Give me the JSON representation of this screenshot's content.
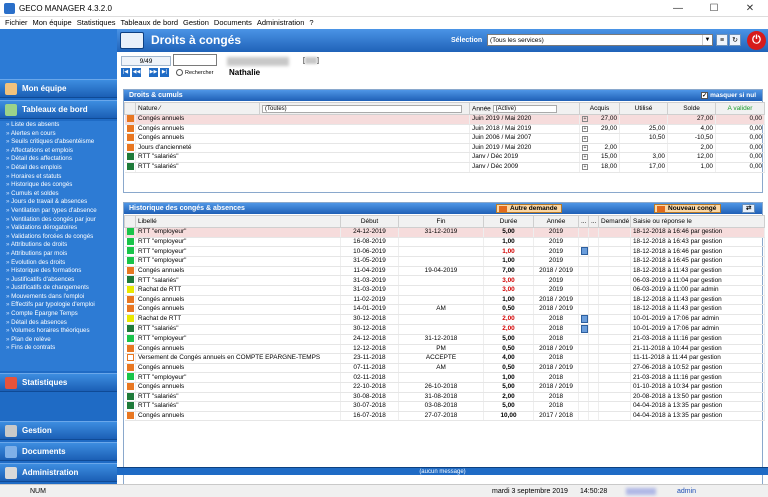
{
  "window": {
    "title": "GECO MANAGER 4.3.2.0",
    "minimize": "—",
    "maximize": "☐",
    "close": "✕"
  },
  "menu": [
    "Fichier",
    "Mon équipe",
    "Statistiques",
    "Tableaux de bord",
    "Gestion",
    "Documents",
    "Administration",
    "?"
  ],
  "sidebar": {
    "mon_equipe": "Mon équipe",
    "tableaux": "Tableaux de bord",
    "items": [
      "Liste des absents",
      "Alertes en cours",
      "Seuils critiques d'absentéisme",
      "Affectations et emplois",
      "Détail des affectations",
      "Détail des emplois",
      "Horaires et statuts",
      "Historique des congés",
      "Cumuls et soldes",
      "Jours de travail & absences",
      "Ventilation par types d'absence",
      "Ventilation des congés par jour",
      "Validations dérogatoires",
      "Validations forcées de congés",
      "Attributions de droits",
      "Attributions par mois",
      "Évolution des droits",
      "Historique des formations",
      "Justificatifs d'absences",
      "Justificatifs de changements",
      "Mouvements dans l'emploi",
      "Effectifs par typologie d'emploi",
      "Compte Épargne Temps",
      "Détail des absences",
      "Volumes horaires théoriques",
      "Plan de relève",
      "Fins de contrats"
    ],
    "statistiques": "Statistiques",
    "gestion": "Gestion",
    "documents": "Documents",
    "administration": "Administration"
  },
  "header": {
    "title": "Droits à congés",
    "selection_label": "Sélection",
    "selection_value": "(Tous les services)"
  },
  "nav": {
    "counter": "9/49",
    "search_label": "Rechercher",
    "person_name": "Nathalie",
    "bracket_left": "[",
    "bracket_right": "]",
    "first": "|◀",
    "prev": "◀◀",
    "next": "▶▶",
    "last": "▶|"
  },
  "droits": {
    "title": "Droits & cumuls",
    "masquer": "masquer si nul",
    "headers": {
      "nature": "Nature",
      "nature_filter": "(Toutes)",
      "annee": "Année",
      "annee_filter": "(Active)",
      "acquis": "Acquis",
      "utilise": "Utilisé",
      "solde": "Solde",
      "a_valider": "A valider"
    },
    "rows": [
      {
        "color": "#e87722",
        "nature": "Congés annuels",
        "annee": "Juin 2019 / Mai 2020",
        "acquis": "27,00",
        "utilise": "",
        "solde": "27,00",
        "a_valider": "0,00",
        "hl": true
      },
      {
        "color": "#e87722",
        "nature": "Congés annuels",
        "annee": "Juin 2018 / Mai 2019",
        "acquis": "29,00",
        "utilise": "25,00",
        "solde": "4,00",
        "a_valider": "0,00",
        "hl": false
      },
      {
        "color": "#e87722",
        "nature": "Congés annuels",
        "annee": "Juin 2006 / Mai 2007",
        "acquis": "",
        "utilise": "10,50",
        "solde": "-10,50",
        "a_valider": "0,00",
        "hl": false
      },
      {
        "color": "#e87722",
        "nature": "Jours d'ancienneté",
        "annee": "Juin 2019 / Mai 2020",
        "acquis": "2,00",
        "utilise": "",
        "solde": "2,00",
        "a_valider": "0,00",
        "hl": false
      },
      {
        "color": "#1e7a3a",
        "nature": "RTT \"salariés\"",
        "annee": "Janv / Déc 2019",
        "acquis": "15,00",
        "utilise": "3,00",
        "solde": "12,00",
        "a_valider": "0,00",
        "hl": false
      },
      {
        "color": "#1e7a3a",
        "nature": "RTT \"salariés\"",
        "annee": "Janv / Déc 2009",
        "acquis": "18,00",
        "utilise": "17,00",
        "solde": "1,00",
        "a_valider": "0,00",
        "hl": false
      }
    ]
  },
  "historique": {
    "title": "Historique des congés & absences",
    "autre_demande": "Autre demande",
    "nouveau_conge": "Nouveau congé",
    "headers": {
      "libelle": "Libellé",
      "debut": "Début",
      "fin": "Fin",
      "duree": "Durée",
      "annee": "Année",
      "d1": "...",
      "d2": "...",
      "demande_le": "Demandé le",
      "saisie": "Saisie ou réponse le"
    },
    "rows": [
      {
        "color": "#19c44a",
        "libelle": "RTT \"employeur\"",
        "debut": "24-12-2019",
        "fin": "31-12-2019",
        "duree": "5,00",
        "red": false,
        "annee": "2019",
        "doc": false,
        "saisie": "18-12-2018 à 16:46  par  gestion",
        "hl": true
      },
      {
        "color": "#19c44a",
        "libelle": "RTT \"employeur\"",
        "debut": "16-08-2019",
        "fin": "",
        "duree": "1,00",
        "red": false,
        "annee": "2019",
        "doc": false,
        "saisie": "18-12-2018 à 16:43  par  gestion",
        "hl": false
      },
      {
        "color": "#19c44a",
        "libelle": "RTT \"employeur\"",
        "debut": "10-06-2019",
        "fin": "",
        "duree": "1,00",
        "red": true,
        "annee": "2019",
        "doc": true,
        "saisie": "18-12-2018 à 16:46  par  gestion",
        "hl": false
      },
      {
        "color": "#19c44a",
        "libelle": "RTT \"employeur\"",
        "debut": "31-05-2019",
        "fin": "",
        "duree": "1,00",
        "red": false,
        "annee": "2019",
        "doc": false,
        "saisie": "18-12-2018 à 16:45  par  gestion",
        "hl": false
      },
      {
        "color": "#e87722",
        "libelle": "Congés annuels",
        "debut": "11-04-2019",
        "fin": "19-04-2019",
        "duree": "7,00",
        "red": false,
        "annee": "2018 / 2019",
        "doc": false,
        "saisie": "18-12-2018 à 11:43  par  gestion",
        "hl": false
      },
      {
        "color": "#1e7a3a",
        "libelle": "RTT \"salariés\"",
        "debut": "31-03-2019",
        "fin": "",
        "duree": "3,00",
        "red": true,
        "annee": "2019",
        "doc": false,
        "saisie": "06-03-2019 à 11:04  par  gestion",
        "hl": false
      },
      {
        "color": "#e8e800",
        "libelle": "Rachat de RTT",
        "debut": "31-03-2019",
        "fin": "",
        "duree": "3,00",
        "red": true,
        "annee": "2019",
        "doc": false,
        "saisie": "06-03-2019 à 11:00  par  admin",
        "hl": false
      },
      {
        "color": "#e87722",
        "libelle": "Congés annuels",
        "debut": "11-02-2019",
        "fin": "",
        "duree": "1,00",
        "red": false,
        "annee": "2018 / 2019",
        "doc": false,
        "saisie": "18-12-2018 à 11:43  par  gestion",
        "hl": false
      },
      {
        "color": "#e87722",
        "libelle": "Congés annuels",
        "debut": "14-01-2019",
        "fin": "AM",
        "duree": "0,50",
        "red": false,
        "annee": "2018 / 2019",
        "doc": false,
        "saisie": "18-12-2018 à 11:43  par  gestion",
        "hl": false
      },
      {
        "color": "#e8e800",
        "libelle": "Rachat de RTT",
        "debut": "30-12-2018",
        "fin": "",
        "duree": "2,00",
        "red": true,
        "annee": "2018",
        "doc": true,
        "saisie": "10-01-2019 à 17:06  par  admin",
        "hl": false
      },
      {
        "color": "#1e7a3a",
        "libelle": "RTT \"salariés\"",
        "debut": "30-12-2018",
        "fin": "",
        "duree": "2,00",
        "red": true,
        "annee": "2018",
        "doc": true,
        "saisie": "10-01-2019 à 17:06  par  admin",
        "hl": false
      },
      {
        "color": "#19c44a",
        "libelle": "RTT \"employeur\"",
        "debut": "24-12-2018",
        "fin": "31-12-2018",
        "duree": "5,00",
        "red": false,
        "annee": "2018",
        "doc": false,
        "saisie": "21-03-2018 à 11:16  par  gestion",
        "hl": false
      },
      {
        "color": "#e87722",
        "libelle": "Congés annuels",
        "debut": "12-12-2018",
        "fin": "PM",
        "duree": "0,50",
        "red": false,
        "annee": "2018 / 2019",
        "doc": false,
        "saisie": "21-11-2018 à 10:44  par  gestion",
        "hl": false
      },
      {
        "color": "#ffffff",
        "libelle": "Versement de Congés annuels en COMPTE EPARGNE-TEMPS",
        "debut": "23-11-2018",
        "fin": "ACCEPTÉ",
        "duree": "4,00",
        "red": false,
        "annee": "2018",
        "doc": false,
        "saisie": "11-11-2018 à 11:44  par  gestion",
        "hl": false
      },
      {
        "color": "#e87722",
        "libelle": "Congés annuels",
        "debut": "07-11-2018",
        "fin": "AM",
        "duree": "0,50",
        "red": false,
        "annee": "2018 / 2019",
        "doc": false,
        "saisie": "27-06-2018 à 10:52  par  gestion",
        "hl": false
      },
      {
        "color": "#19c44a",
        "libelle": "RTT \"employeur\"",
        "debut": "02-11-2018",
        "fin": "",
        "duree": "1,00",
        "red": false,
        "annee": "2018",
        "doc": false,
        "saisie": "21-03-2018 à 11:16  par  gestion",
        "hl": false
      },
      {
        "color": "#e87722",
        "libelle": "Congés annuels",
        "debut": "22-10-2018",
        "fin": "26-10-2018",
        "duree": "5,00",
        "red": false,
        "annee": "2018 / 2019",
        "doc": false,
        "saisie": "01-10-2018 à 10:34  par  gestion",
        "hl": false
      },
      {
        "color": "#1e7a3a",
        "libelle": "RTT \"salariés\"",
        "debut": "30-08-2018",
        "fin": "31-08-2018",
        "duree": "2,00",
        "red": false,
        "annee": "2018",
        "doc": false,
        "saisie": "20-08-2018 à 13:50  par  gestion",
        "hl": false
      },
      {
        "color": "#1e7a3a",
        "libelle": "RTT \"salariés\"",
        "debut": "30-07-2018",
        "fin": "03-08-2018",
        "duree": "5,00",
        "red": false,
        "annee": "2018",
        "doc": false,
        "saisie": "04-04-2018 à 13:35  par  gestion",
        "hl": false
      },
      {
        "color": "#e87722",
        "libelle": "Congés annuels",
        "debut": "16-07-2018",
        "fin": "27-07-2018",
        "duree": "10,00",
        "red": false,
        "annee": "2017 / 2018",
        "doc": false,
        "saisie": "04-04-2018 à 13:35  par  gestion",
        "hl": false
      }
    ]
  },
  "status_message": "(aucun message)",
  "statusbar": {
    "num": "NUM",
    "date": "mardi 3 septembre 2019",
    "time": "14:50:28",
    "user": "admin"
  }
}
